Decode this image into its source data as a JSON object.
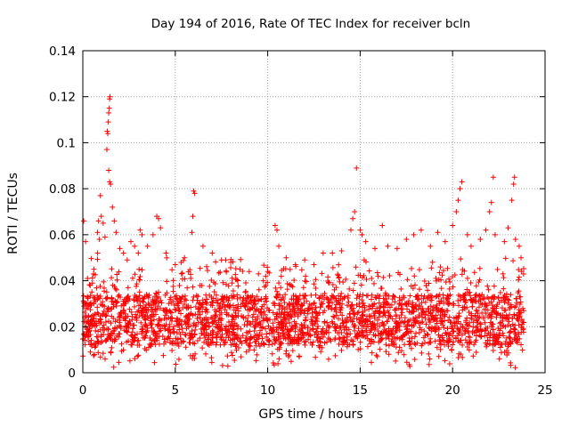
{
  "chart_data": {
    "type": "scatter",
    "title": "Day 194 of 2016, Rate Of TEC Index for receiver bcln",
    "xlabel": "GPS time / hours",
    "ylabel": "ROTI / TECUs",
    "xlim": [
      0,
      25
    ],
    "ylim": [
      0,
      0.14
    ],
    "x_ticks": [
      0,
      5,
      10,
      15,
      20,
      25
    ],
    "x_tick_labels": [
      "0",
      "5",
      "10",
      "15",
      "20",
      "25"
    ],
    "y_ticks": [
      0,
      0.02,
      0.04,
      0.06,
      0.08,
      0.1,
      0.12,
      0.14
    ],
    "y_tick_labels": [
      "0",
      "0.02",
      "0.04",
      "0.06",
      "0.08",
      "0.1",
      "0.12",
      "0.14"
    ],
    "grid": true,
    "marker": "+",
    "color": "#ff0000",
    "series": [
      {
        "name": "ROTI",
        "points": [
          [
            0.05,
            0.066
          ],
          [
            0.15,
            0.057
          ],
          [
            0.25,
            0.041
          ],
          [
            0.4,
            0.038
          ],
          [
            0.6,
            0.045
          ],
          [
            0.8,
            0.052
          ],
          [
            0.8,
            0.061
          ],
          [
            0.85,
            0.066
          ],
          [
            0.9,
            0.058
          ],
          [
            0.95,
            0.077
          ],
          [
            1.0,
            0.068
          ],
          [
            1.1,
            0.065
          ],
          [
            1.2,
            0.059
          ],
          [
            1.3,
            0.097
          ],
          [
            1.32,
            0.105
          ],
          [
            1.35,
            0.104
          ],
          [
            1.38,
            0.109
          ],
          [
            1.4,
            0.113
          ],
          [
            1.43,
            0.115
          ],
          [
            1.45,
            0.119
          ],
          [
            1.47,
            0.12
          ],
          [
            1.4,
            0.088
          ],
          [
            1.45,
            0.083
          ],
          [
            1.5,
            0.082
          ],
          [
            1.6,
            0.072
          ],
          [
            1.7,
            0.066
          ],
          [
            1.8,
            0.061
          ],
          [
            2.0,
            0.054
          ],
          [
            2.2,
            0.052
          ],
          [
            2.4,
            0.049
          ],
          [
            2.6,
            0.057
          ],
          [
            2.8,
            0.055
          ],
          [
            3.0,
            0.052
          ],
          [
            3.1,
            0.062
          ],
          [
            3.2,
            0.06
          ],
          [
            3.5,
            0.055
          ],
          [
            3.8,
            0.06
          ],
          [
            4.0,
            0.068
          ],
          [
            4.1,
            0.067
          ],
          [
            4.2,
            0.063
          ],
          [
            4.5,
            0.052
          ],
          [
            5.0,
            0.047
          ],
          [
            5.5,
            0.05
          ],
          [
            5.9,
            0.061
          ],
          [
            5.95,
            0.068
          ],
          [
            6.0,
            0.079
          ],
          [
            6.05,
            0.078
          ],
          [
            6.5,
            0.055
          ],
          [
            7.0,
            0.052
          ],
          [
            7.5,
            0.049
          ],
          [
            8.0,
            0.048
          ],
          [
            8.5,
            0.045
          ],
          [
            9.0,
            0.044
          ],
          [
            9.5,
            0.043
          ],
          [
            10.0,
            0.044
          ],
          [
            10.4,
            0.064
          ],
          [
            10.5,
            0.062
          ],
          [
            10.6,
            0.055
          ],
          [
            11.0,
            0.05
          ],
          [
            11.5,
            0.047
          ],
          [
            12.0,
            0.049
          ],
          [
            12.5,
            0.047
          ],
          [
            13.0,
            0.052
          ],
          [
            13.5,
            0.052
          ],
          [
            14.0,
            0.053
          ],
          [
            14.5,
            0.062
          ],
          [
            14.6,
            0.067
          ],
          [
            14.7,
            0.07
          ],
          [
            14.8,
            0.089
          ],
          [
            15.0,
            0.062
          ],
          [
            15.1,
            0.06
          ],
          [
            15.3,
            0.057
          ],
          [
            15.8,
            0.054
          ],
          [
            16.2,
            0.064
          ],
          [
            16.5,
            0.055
          ],
          [
            17.0,
            0.054
          ],
          [
            17.5,
            0.058
          ],
          [
            17.9,
            0.06
          ],
          [
            18.3,
            0.062
          ],
          [
            18.8,
            0.055
          ],
          [
            19.2,
            0.061
          ],
          [
            19.6,
            0.057
          ],
          [
            20.0,
            0.064
          ],
          [
            20.2,
            0.07
          ],
          [
            20.3,
            0.075
          ],
          [
            20.4,
            0.08
          ],
          [
            20.5,
            0.083
          ],
          [
            20.8,
            0.06
          ],
          [
            21.0,
            0.055
          ],
          [
            21.5,
            0.058
          ],
          [
            21.8,
            0.062
          ],
          [
            22.0,
            0.07
          ],
          [
            22.1,
            0.074
          ],
          [
            22.2,
            0.085
          ],
          [
            22.3,
            0.06
          ],
          [
            22.8,
            0.057
          ],
          [
            23.0,
            0.063
          ],
          [
            23.2,
            0.075
          ],
          [
            23.3,
            0.082
          ],
          [
            23.35,
            0.085
          ],
          [
            23.4,
            0.058
          ],
          [
            23.6,
            0.055
          ],
          [
            23.7,
            0.05
          ]
        ],
        "band": {
          "x_range": [
            0.0,
            23.85
          ],
          "typical_range": [
            0.006,
            0.04
          ],
          "floor": 0.002
        }
      }
    ]
  }
}
